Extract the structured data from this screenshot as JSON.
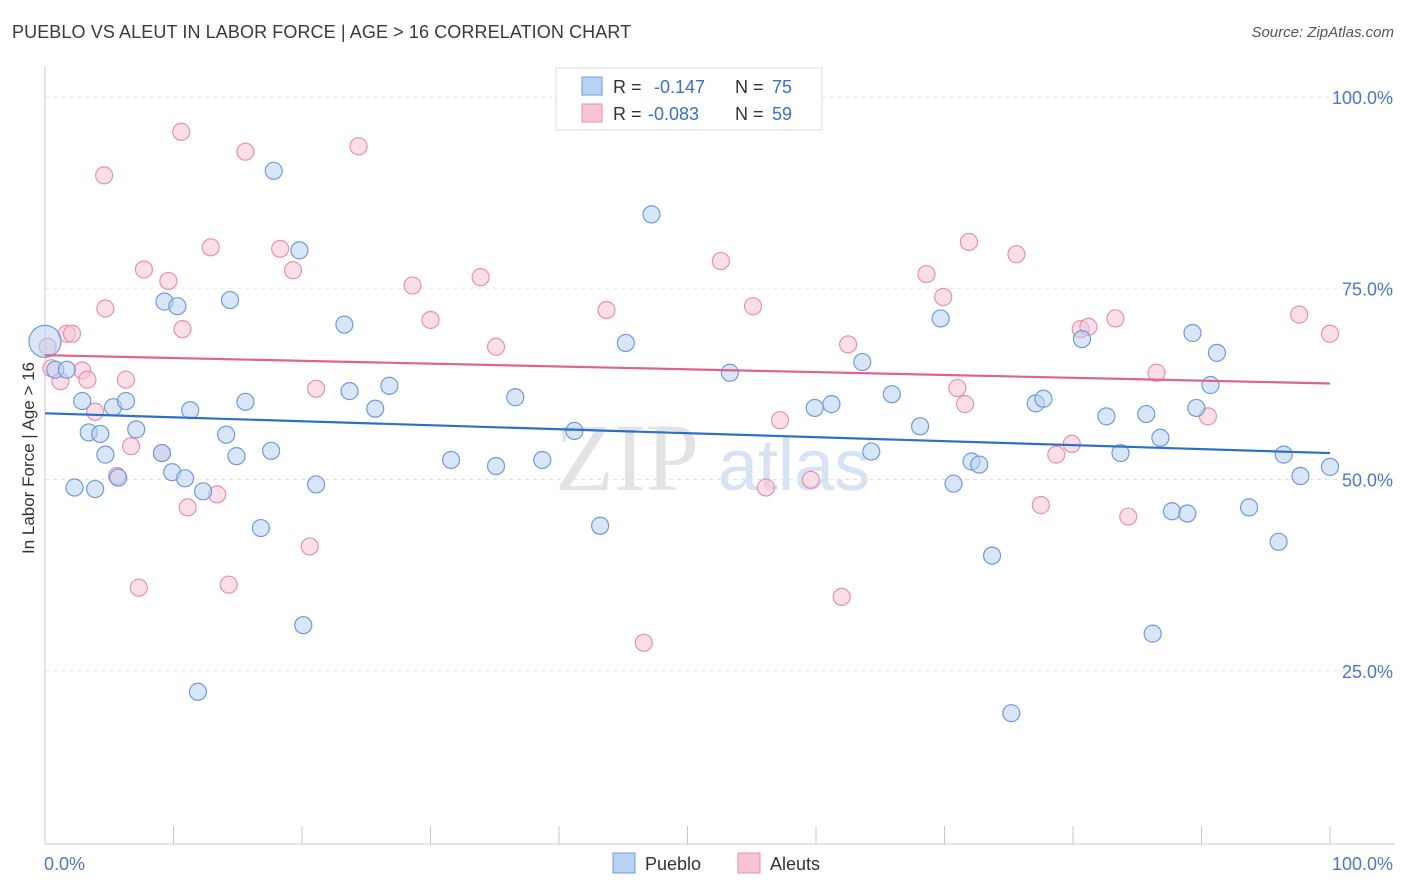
{
  "title": "PUEBLO VS ALEUT IN LABOR FORCE | AGE > 16 CORRELATION CHART",
  "source": "Source: ZipAtlas.com",
  "watermark": {
    "zip": "ZIP",
    "atlas": "atlas"
  },
  "colors": {
    "pueblo": "#6b9be0",
    "pueblo_fill": "#b9d2f3",
    "pueblo_line": "#2b6fcb",
    "aleuts": "#ea8fae",
    "aleuts_fill": "#f8c5d5",
    "aleuts_line": "#e0628d"
  },
  "legend": {
    "r_label": "R =",
    "n_label": "N =",
    "rows": [
      {
        "series": "Pueblo",
        "r": "-0.147",
        "n": "75"
      },
      {
        "series": "Aleuts",
        "r": "-0.083",
        "n": "59"
      }
    ]
  },
  "chart_data": {
    "type": "scatter",
    "title": "PUEBLO VS ALEUT IN LABOR FORCE | AGE > 16 CORRELATION CHART",
    "ylabel": "In Labor Force | Age > 16",
    "xlim": [
      0,
      100
    ],
    "ylim": [
      0,
      105
    ],
    "x_tick_labels": [
      "0.0%",
      "100.0%"
    ],
    "y_ticks": [
      25,
      50,
      75,
      100
    ],
    "y_tick_labels": [
      "25.0%",
      "50.0%",
      "75.0%",
      "100.0%"
    ],
    "grid": true,
    "legend_position": "top-center",
    "series": [
      {
        "name": "Pueblo",
        "trend": [
          [
            0,
            56.3
          ],
          [
            100,
            51.1
          ]
        ],
        "points": [
          [
            0.0,
            65.7
          ],
          [
            0.8,
            62.0
          ],
          [
            1.7,
            62.0
          ],
          [
            2.3,
            46.6
          ],
          [
            2.9,
            57.9
          ],
          [
            3.4,
            53.8
          ],
          [
            3.9,
            46.4
          ],
          [
            4.3,
            53.6
          ],
          [
            4.7,
            50.9
          ],
          [
            5.3,
            57.1
          ],
          [
            5.7,
            47.9
          ],
          [
            6.3,
            57.9
          ],
          [
            7.1,
            54.2
          ],
          [
            9.1,
            51.1
          ],
          [
            9.3,
            70.9
          ],
          [
            9.9,
            48.6
          ],
          [
            10.3,
            70.3
          ],
          [
            10.9,
            47.8
          ],
          [
            11.3,
            56.7
          ],
          [
            11.9,
            19.9
          ],
          [
            12.3,
            46.1
          ],
          [
            14.1,
            53.5
          ],
          [
            14.4,
            71.1
          ],
          [
            14.9,
            50.7
          ],
          [
            15.6,
            57.8
          ],
          [
            16.8,
            41.3
          ],
          [
            17.6,
            51.4
          ],
          [
            17.8,
            88.0
          ],
          [
            19.8,
            77.6
          ],
          [
            20.1,
            28.6
          ],
          [
            21.1,
            47.0
          ],
          [
            23.3,
            67.9
          ],
          [
            23.7,
            59.2
          ],
          [
            25.7,
            56.9
          ],
          [
            31.6,
            50.2
          ],
          [
            35.1,
            49.4
          ],
          [
            36.6,
            58.4
          ],
          [
            38.7,
            50.2
          ],
          [
            41.2,
            54.0
          ],
          [
            43.2,
            41.6
          ],
          [
            45.2,
            65.5
          ],
          [
            47.2,
            82.3
          ],
          [
            59.9,
            57.0
          ],
          [
            61.2,
            57.5
          ],
          [
            63.6,
            63.0
          ],
          [
            64.3,
            51.3
          ],
          [
            65.9,
            58.8
          ],
          [
            68.1,
            54.6
          ],
          [
            69.7,
            68.7
          ],
          [
            70.7,
            47.1
          ],
          [
            72.1,
            50.0
          ],
          [
            72.7,
            49.6
          ],
          [
            73.7,
            37.7
          ],
          [
            75.2,
            17.1
          ],
          [
            77.1,
            57.6
          ],
          [
            77.7,
            58.2
          ],
          [
            80.7,
            66.0
          ],
          [
            82.6,
            55.9
          ],
          [
            83.7,
            51.1
          ],
          [
            85.7,
            56.2
          ],
          [
            86.2,
            27.5
          ],
          [
            86.8,
            53.1
          ],
          [
            87.7,
            43.5
          ],
          [
            88.9,
            43.2
          ],
          [
            89.3,
            66.8
          ],
          [
            89.6,
            57.0
          ],
          [
            90.7,
            60.0
          ],
          [
            91.2,
            64.2
          ],
          [
            93.7,
            44.0
          ],
          [
            96.0,
            39.5
          ],
          [
            96.4,
            50.9
          ],
          [
            97.7,
            48.1
          ],
          [
            100.0,
            49.3
          ],
          [
            26.8,
            59.9
          ],
          [
            53.3,
            61.6
          ]
        ]
      },
      {
        "name": "Aleuts",
        "trend": [
          [
            0,
            63.9
          ],
          [
            100,
            60.2
          ]
        ],
        "points": [
          [
            0.2,
            65.0
          ],
          [
            0.5,
            62.2
          ],
          [
            1.2,
            60.5
          ],
          [
            1.7,
            66.7
          ],
          [
            2.1,
            66.7
          ],
          [
            2.9,
            61.9
          ],
          [
            3.3,
            60.7
          ],
          [
            3.9,
            56.5
          ],
          [
            4.6,
            87.4
          ],
          [
            4.7,
            70.0
          ],
          [
            5.6,
            48.1
          ],
          [
            6.3,
            60.7
          ],
          [
            6.7,
            52.0
          ],
          [
            7.3,
            33.5
          ],
          [
            7.7,
            75.1
          ],
          [
            9.1,
            51.1
          ],
          [
            9.6,
            73.6
          ],
          [
            10.6,
            93.1
          ],
          [
            10.7,
            67.3
          ],
          [
            11.1,
            44.0
          ],
          [
            12.9,
            78.0
          ],
          [
            13.4,
            45.7
          ],
          [
            14.3,
            33.9
          ],
          [
            15.6,
            90.5
          ],
          [
            18.3,
            77.8
          ],
          [
            19.3,
            75.0
          ],
          [
            20.6,
            38.9
          ],
          [
            21.1,
            59.5
          ],
          [
            24.4,
            91.2
          ],
          [
            28.6,
            73.0
          ],
          [
            30.0,
            68.5
          ],
          [
            33.9,
            74.1
          ],
          [
            35.1,
            65.0
          ],
          [
            43.7,
            69.8
          ],
          [
            46.6,
            26.3
          ],
          [
            52.6,
            76.2
          ],
          [
            55.1,
            70.3
          ],
          [
            56.1,
            46.6
          ],
          [
            57.2,
            55.4
          ],
          [
            59.6,
            47.6
          ],
          [
            62.0,
            32.3
          ],
          [
            62.5,
            65.3
          ],
          [
            68.6,
            74.5
          ],
          [
            69.9,
            71.5
          ],
          [
            71.0,
            59.6
          ],
          [
            71.6,
            57.5
          ],
          [
            71.9,
            78.7
          ],
          [
            75.6,
            77.1
          ],
          [
            77.5,
            44.3
          ],
          [
            78.7,
            50.9
          ],
          [
            79.9,
            52.3
          ],
          [
            80.6,
            67.3
          ],
          [
            81.2,
            67.6
          ],
          [
            83.3,
            68.7
          ],
          [
            84.3,
            42.8
          ],
          [
            86.5,
            61.6
          ],
          [
            90.5,
            55.9
          ],
          [
            97.6,
            69.2
          ],
          [
            100.0,
            66.7
          ]
        ]
      }
    ]
  }
}
